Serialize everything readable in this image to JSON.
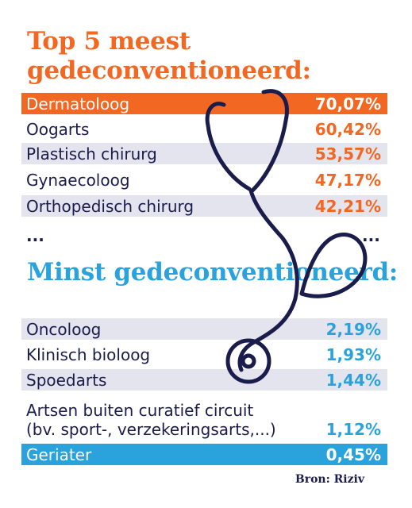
{
  "chart_data": {
    "type": "table",
    "title_top": "Top 5 meest gedeconventioneerd:",
    "title_bottom": "Minst gedeconventioneerd:",
    "top_rows": [
      {
        "label": "Dermatoloog",
        "value": "70,07%"
      },
      {
        "label": "Oogarts",
        "value": "60,42%"
      },
      {
        "label": "Plastisch chirurg",
        "value": "53,57%"
      },
      {
        "label": "Gynaecoloog",
        "value": "47,17%"
      },
      {
        "label": "Orthopedisch chirurg",
        "value": "42,21%"
      }
    ],
    "bottom_rows": [
      {
        "label": "Oncoloog",
        "value": "2,19%"
      },
      {
        "label": "Klinisch bioloog",
        "value": "1,93%"
      },
      {
        "label": "Spoedarts",
        "value": "1,44%"
      },
      {
        "label": "Artsen buiten curatief circuit",
        "label2": "(bv. sport-, verzekeringsarts,...)",
        "value": "1,12%"
      },
      {
        "label": "Geriater",
        "value": "0,45%"
      }
    ],
    "ellipsis": "...",
    "source": "Bron: Riziv",
    "colors": {
      "orange": "#f26722",
      "blue": "#2aa3dd",
      "navy": "#1a1c4b",
      "stripe": "#e4e4ee"
    }
  }
}
